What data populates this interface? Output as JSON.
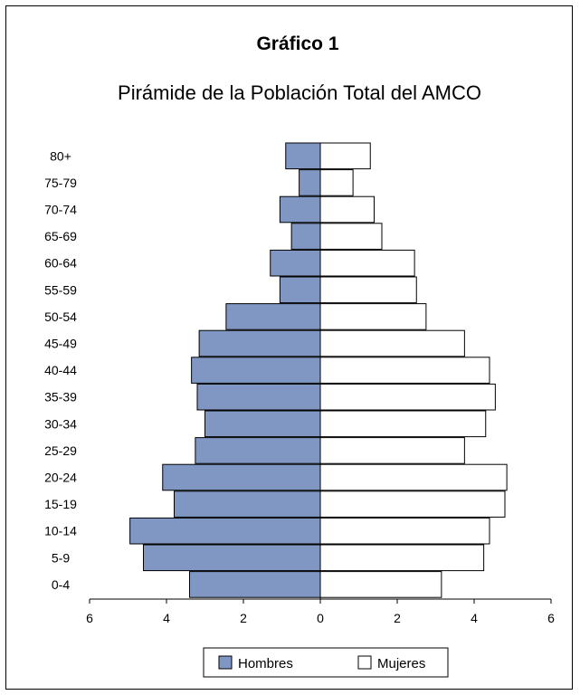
{
  "chart_data": {
    "type": "bar",
    "orientation": "horizontal",
    "title": "Gráfico 1",
    "subtitle": "Pirámide de la Población Total del AMCO",
    "categories": [
      "80+",
      "75-79",
      "70-74",
      "65-69",
      "60-64",
      "55-59",
      "50-54",
      "45-49",
      "40-44",
      "35-39",
      "30-34",
      "25-29",
      "20-24",
      "15-19",
      "10-14",
      "5-9",
      "0-4"
    ],
    "series": [
      {
        "name": "Hombres",
        "color": "#7f97c2",
        "values": [
          0.9,
          0.55,
          1.05,
          0.75,
          1.3,
          1.05,
          2.45,
          3.15,
          3.35,
          3.2,
          3.0,
          3.25,
          4.1,
          3.8,
          4.95,
          4.6,
          3.4
        ]
      },
      {
        "name": "Mujeres",
        "color": "#ffffff",
        "values": [
          1.3,
          0.85,
          1.4,
          1.6,
          2.45,
          2.5,
          2.75,
          3.75,
          4.4,
          4.55,
          4.3,
          3.75,
          4.85,
          4.8,
          4.4,
          4.25,
          3.15
        ]
      }
    ],
    "xlim": [
      -6,
      6
    ],
    "xticks": [
      "6",
      "4",
      "2",
      "0",
      "2",
      "4",
      "6"
    ],
    "grid": false,
    "legend": "bottom-center"
  }
}
